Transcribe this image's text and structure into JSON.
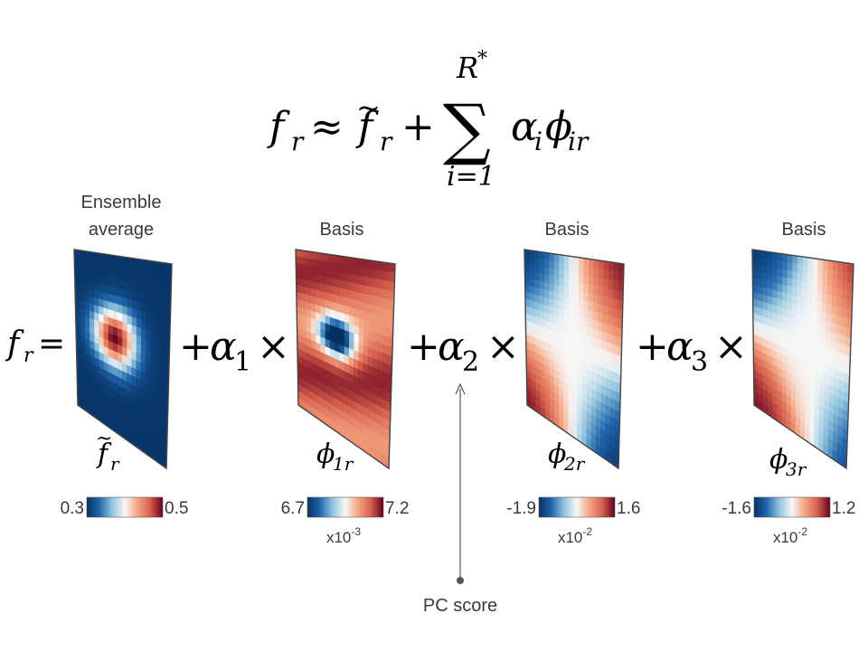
{
  "equation": {
    "lhs": "f",
    "lhs_sub": "r",
    "approx": "≈",
    "mean_sym": "f",
    "mean_sub": "r",
    "plus": "+",
    "sum_sym": "∑",
    "sum_upper": "R",
    "sum_upper_sup": "*",
    "sum_lower": "i=1",
    "term_alpha": "α",
    "term_alpha_sub": "i",
    "term_phi": "ϕ",
    "term_phi_sub": "ir"
  },
  "row": {
    "lhs": "f",
    "lhs_sub": "r",
    "eq": "=",
    "terms": [
      {
        "plus": "+",
        "alpha": "α",
        "sub": "1",
        "times": "×"
      },
      {
        "plus": "+",
        "alpha": "α",
        "sub": "2",
        "times": "×"
      },
      {
        "plus": "+",
        "alpha": "α",
        "sub": "3",
        "times": "×"
      }
    ]
  },
  "panels": [
    {
      "title_lines": [
        "Ensemble",
        "average"
      ],
      "symbol": "f",
      "symbol_sub": "r",
      "symbol_tilde": true,
      "pattern": "mean",
      "colorbar": {
        "min": "0.3",
        "max": "0.5",
        "scale": "",
        "scale_exp": ""
      }
    },
    {
      "title_lines": [
        "Basis"
      ],
      "symbol": "ϕ",
      "symbol_sub": "1r",
      "symbol_tilde": false,
      "pattern": "basis1",
      "colorbar": {
        "min": "6.7",
        "max": "7.2",
        "scale": "x10",
        "scale_exp": "-3"
      }
    },
    {
      "title_lines": [
        "Basis"
      ],
      "symbol": "ϕ",
      "symbol_sub": "2r",
      "symbol_tilde": false,
      "pattern": "basis2",
      "colorbar": {
        "min": "-1.9",
        "max": "1.6",
        "scale": "x10",
        "scale_exp": "-2"
      }
    },
    {
      "title_lines": [
        "Basis"
      ],
      "symbol": "ϕ",
      "symbol_sub": "3r",
      "symbol_tilde": false,
      "pattern": "basis3",
      "colorbar": {
        "min": "-1.6",
        "max": "1.2",
        "scale": "x10",
        "scale_exp": "-2"
      }
    }
  ],
  "annotation": {
    "label": "PC score"
  },
  "colors": {
    "low": "#053061",
    "mid_low": "#2166ac",
    "light_low": "#92c5de",
    "mid": "#f7f7f7",
    "light_high": "#f4a582",
    "mid_high": "#d6604d",
    "high": "#67001f",
    "frame": "#444444",
    "arrow": "#555555"
  }
}
